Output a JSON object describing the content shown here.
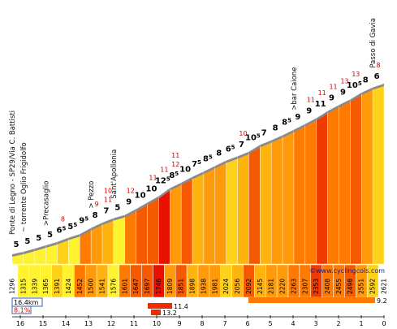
{
  "chart_data": {
    "type": "area",
    "x_axis": {
      "reversed": true,
      "ticks": [
        16,
        15,
        14,
        13,
        12,
        11,
        10,
        9,
        8,
        7,
        6,
        5,
        4,
        3,
        2,
        1,
        0
      ]
    },
    "start_elevation": "1296",
    "end_elevation": "2621",
    "elevations": [
      "1315",
      "1339",
      "1365",
      "1391",
      "1424",
      "1452",
      "1500",
      "1541",
      "1576",
      "1601",
      "1647",
      "1697",
      "1746",
      "1809",
      "1851",
      "1898",
      "1938",
      "1981",
      "2024",
      "2056",
      "2092",
      "2145",
      "2181",
      "2220",
      "2263",
      "2307",
      "2353",
      "2408",
      "2455",
      "2498",
      "2551",
      "2592"
    ],
    "gradients": [
      {
        "main": "5",
        "frac": ""
      },
      {
        "main": "5",
        "frac": ""
      },
      {
        "main": "5",
        "frac": ""
      },
      {
        "main": "5",
        "frac": ""
      },
      {
        "main": "6",
        "frac": "5"
      },
      {
        "main": "5",
        "frac": "5"
      },
      {
        "main": "9",
        "frac": "5"
      },
      {
        "main": "8",
        "frac": ""
      },
      {
        "main": "7",
        "frac": ""
      },
      {
        "main": "5",
        "frac": ""
      },
      {
        "main": "9",
        "frac": ""
      },
      {
        "main": "10",
        "frac": ""
      },
      {
        "main": "10",
        "frac": ""
      },
      {
        "main": "12",
        "frac": "5"
      },
      {
        "main": "8",
        "frac": "5"
      },
      {
        "main": "10",
        "frac": ""
      },
      {
        "main": "7",
        "frac": "5"
      },
      {
        "main": "8",
        "frac": "5"
      },
      {
        "main": "8",
        "frac": ""
      },
      {
        "main": "6",
        "frac": "5"
      },
      {
        "main": "7",
        "frac": ""
      },
      {
        "main": "10",
        "frac": "5"
      },
      {
        "main": "7",
        "frac": ""
      },
      {
        "main": "8",
        "frac": ""
      },
      {
        "main": "8",
        "frac": "5"
      },
      {
        "main": "9",
        "frac": ""
      },
      {
        "main": "9",
        "frac": ""
      },
      {
        "main": "11",
        "frac": ""
      },
      {
        "main": "9",
        "frac": ""
      },
      {
        "main": "9",
        "frac": ""
      },
      {
        "main": "10",
        "frac": "5"
      },
      {
        "main": "8",
        "frac": ""
      },
      {
        "main": "6",
        "frac": ""
      }
    ],
    "max_gradients": [
      {
        "seg": 4,
        "texts": [
          "8"
        ]
      },
      {
        "seg": 7,
        "texts": [
          "9"
        ]
      },
      {
        "seg": 8,
        "texts": [
          "10",
          "11"
        ]
      },
      {
        "seg": 10,
        "texts": [
          "12"
        ]
      },
      {
        "seg": 12,
        "texts": [
          "11"
        ]
      },
      {
        "seg": 13,
        "texts": [
          "11"
        ]
      },
      {
        "seg": 14,
        "texts": [
          "11",
          "12"
        ]
      },
      {
        "seg": 20,
        "texts": [
          "10"
        ]
      },
      {
        "seg": 26,
        "texts": [
          "11"
        ]
      },
      {
        "seg": 27,
        "texts": [
          "11"
        ]
      },
      {
        "seg": 28,
        "texts": [
          "11"
        ]
      },
      {
        "seg": 29,
        "texts": [
          "13"
        ]
      },
      {
        "seg": 30,
        "texts": [
          "13"
        ]
      },
      {
        "seg": 32,
        "texts": [
          "8"
        ]
      }
    ],
    "places": [
      {
        "name": "Ponte di Legno - SP29/Via C. Battisti",
        "seg": 0
      },
      {
        "name": "~ torrente Oglio Frigidolfo",
        "seg": 1
      },
      {
        "name": ">Precasaglio",
        "seg": 3
      },
      {
        "name": "> Pezzo",
        "seg": 7
      },
      {
        "name": "Sant'Apollonia",
        "seg": 9
      },
      {
        "name": ">bar Caione",
        "seg": 25
      },
      {
        "name": "Passo di Gavia",
        "seg": 32
      }
    ],
    "summary": {
      "distance": "16.4km",
      "avg_gradient": "8.1%",
      "max1": "11.4",
      "max2": "13.2",
      "max3": "9.2"
    },
    "credit": "©www.cyclingcols.com"
  }
}
